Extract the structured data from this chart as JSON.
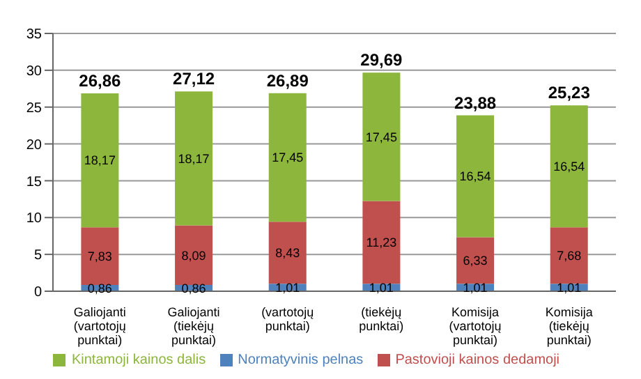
{
  "chart_data": {
    "type": "bar",
    "stacked": true,
    "categories": [
      "Galiojanti (vartotojų punktai)",
      "Galiojanti (tiekėjų punktai)",
      "(vartotojų punktai)",
      "(tiekėjų punktai)",
      "Komisija (vartotojų punktai)",
      "Komisija (tiekėjų punktai)"
    ],
    "series": [
      {
        "name": "Normatyvinis pelnas",
        "color": "#4f81bd",
        "values": [
          0.86,
          0.86,
          1.01,
          1.01,
          1.01,
          1.01
        ],
        "value_labels": [
          "0,86",
          "0,86",
          "1,01",
          "1,01",
          "1,01",
          "1,01"
        ]
      },
      {
        "name": "Pastovioji kainos dedamoji",
        "color": "#c0504d",
        "values": [
          7.83,
          8.09,
          8.43,
          11.23,
          6.33,
          7.68
        ],
        "value_labels": [
          "7,83",
          "8,09",
          "8,43",
          "11,23",
          "6,33",
          "7,68"
        ]
      },
      {
        "name": "Kintamoji kainos dalis",
        "color": "#8db63c",
        "values": [
          18.17,
          18.17,
          17.45,
          17.45,
          16.54,
          16.54
        ],
        "value_labels": [
          "18,17",
          "18,17",
          "17,45",
          "17,45",
          "16,54",
          "16,54"
        ]
      }
    ],
    "totals": [
      "26,86",
      "27,12",
      "26,89",
      "29,69",
      "23,88",
      "25,23"
    ],
    "ylim": [
      0,
      35
    ],
    "yticks": [
      0,
      5,
      10,
      15,
      20,
      25,
      30,
      35
    ],
    "grid": "y",
    "legend": "bottom"
  }
}
